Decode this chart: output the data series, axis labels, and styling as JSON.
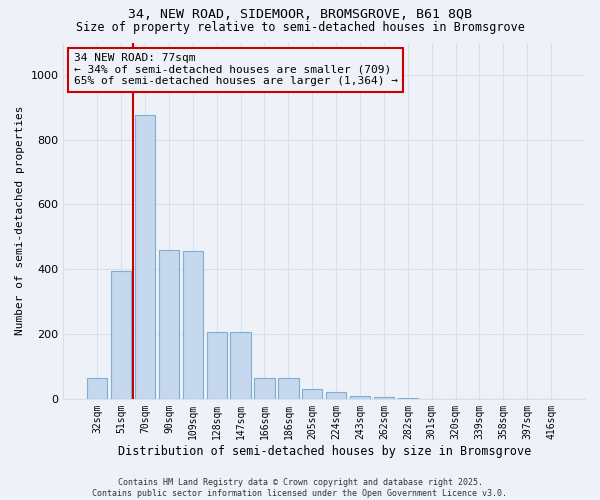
{
  "title1": "34, NEW ROAD, SIDEMOOR, BROMSGROVE, B61 8QB",
  "title2": "Size of property relative to semi-detached houses in Bromsgrove",
  "xlabel": "Distribution of semi-detached houses by size in Bromsgrove",
  "ylabel": "Number of semi-detached properties",
  "bar_color": "#c5d8ed",
  "bar_edge_color": "#7bafd4",
  "property_label": "34 NEW ROAD: 77sqm",
  "pct_smaller": 34,
  "pct_larger": 65,
  "n_smaller": 709,
  "n_larger": 1364,
  "annotation_line_color": "#cc0000",
  "annotation_box_color": "#cc0000",
  "categories": [
    "32sqm",
    "51sqm",
    "70sqm",
    "90sqm",
    "109sqm",
    "128sqm",
    "147sqm",
    "166sqm",
    "186sqm",
    "205sqm",
    "224sqm",
    "243sqm",
    "262sqm",
    "282sqm",
    "301sqm",
    "320sqm",
    "339sqm",
    "358sqm",
    "397sqm",
    "416sqm"
  ],
  "values": [
    65,
    395,
    875,
    460,
    455,
    205,
    205,
    65,
    65,
    30,
    20,
    10,
    5,
    2,
    1,
    1,
    0,
    0,
    0,
    0
  ],
  "ylim": [
    0,
    1100
  ],
  "yticks": [
    0,
    200,
    400,
    600,
    800,
    1000
  ],
  "vline_bin": 2,
  "background_color": "#eef2f8",
  "grid_color": "#d8dfe8",
  "footer": "Contains HM Land Registry data © Crown copyright and database right 2025.\nContains public sector information licensed under the Open Government Licence v3.0."
}
